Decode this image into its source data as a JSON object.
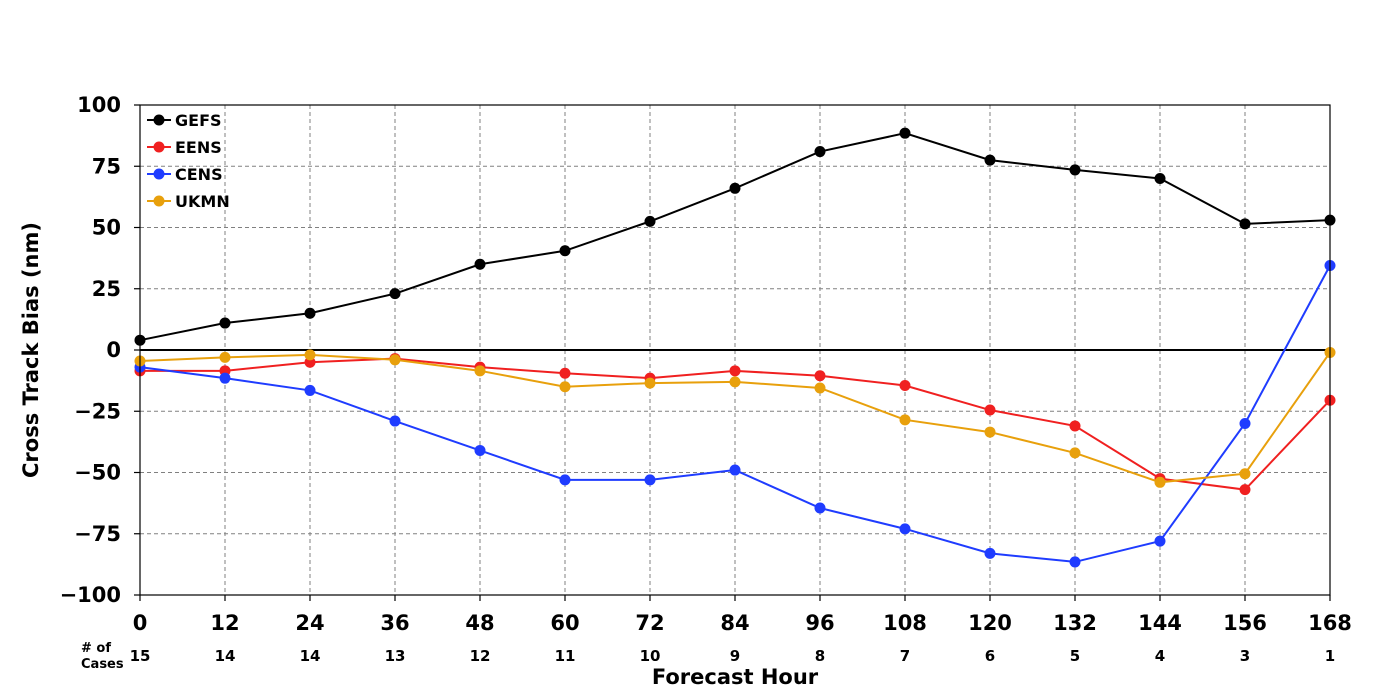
{
  "chart_data": {
    "type": "line",
    "title": "",
    "xlabel": "Forecast Hour",
    "ylabel": "Cross Track Bias (nm)",
    "x": [
      0,
      12,
      24,
      36,
      48,
      60,
      72,
      84,
      96,
      108,
      120,
      132,
      144,
      156,
      168
    ],
    "xlim": [
      0,
      168
    ],
    "ylim": [
      -100,
      100
    ],
    "xticks": [
      0,
      12,
      24,
      36,
      48,
      60,
      72,
      84,
      96,
      108,
      120,
      132,
      144,
      156,
      168
    ],
    "yticks": [
      100,
      75,
      50,
      25,
      0,
      -25,
      -50,
      -75,
      -100
    ],
    "ytick_labels": [
      "100",
      "75",
      "50",
      "25",
      "0",
      "−25",
      "−50",
      "−75",
      "−100"
    ],
    "grid": true,
    "grid_style": "dashed",
    "zero_line": true,
    "legend_position": "top-left",
    "cases_label": [
      "# of",
      "Cases"
    ],
    "cases": [
      15,
      14,
      14,
      13,
      12,
      11,
      10,
      9,
      8,
      7,
      6,
      5,
      4,
      3,
      1
    ],
    "series": [
      {
        "name": "GEFS",
        "color": "#000000",
        "values": [
          4,
          11,
          15,
          23,
          35,
          40.5,
          52.5,
          66,
          81,
          88.5,
          77.5,
          73.5,
          70,
          51.5,
          53
        ]
      },
      {
        "name": "EENS",
        "color": "#f02020",
        "values": [
          -8.5,
          -8.5,
          -5,
          -3.5,
          -7,
          -9.5,
          -11.5,
          -8.5,
          -10.5,
          -14.5,
          -24.5,
          -31,
          -52.5,
          -57,
          -20.5
        ]
      },
      {
        "name": "CENS",
        "color": "#1f3cff",
        "values": [
          -7,
          -11.5,
          -16.5,
          -29,
          -41,
          -53,
          -53,
          -49,
          -64.5,
          -73,
          -83,
          -86.5,
          -78,
          -30,
          34.5
        ]
      },
      {
        "name": "UKMN",
        "color": "#e8a00c",
        "values": [
          -4.5,
          -3,
          -2,
          -4,
          -8.5,
          -15,
          -13.5,
          -13,
          -15.5,
          -28.5,
          -33.5,
          -42,
          -54,
          -50.5,
          -1
        ]
      }
    ]
  }
}
